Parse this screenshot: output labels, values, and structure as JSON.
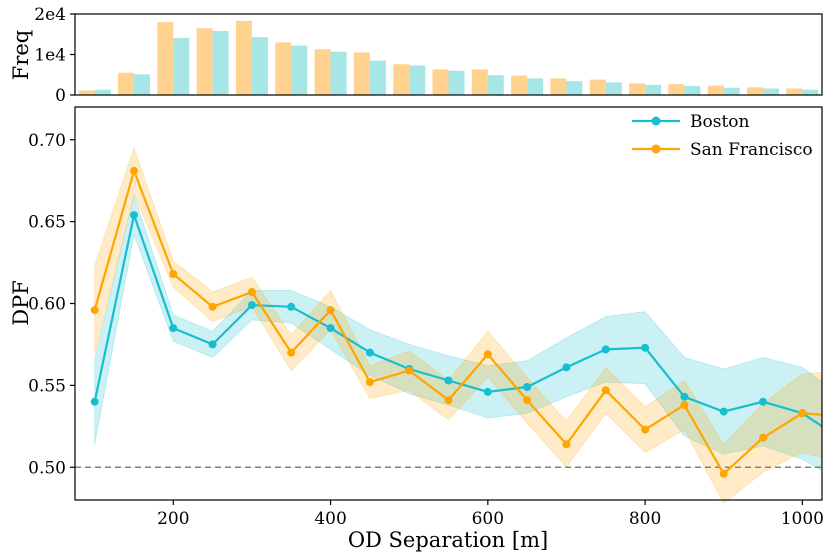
{
  "chart_data": [
    {
      "type": "bar",
      "ylabel": "Freq",
      "ylim": [
        0,
        20000
      ],
      "yticks": [
        {
          "value": 0,
          "label": "0"
        },
        {
          "value": 10000,
          "label": "1e4"
        },
        {
          "value": 20000,
          "label": "2e4"
        }
      ],
      "categories": [
        100,
        150,
        200,
        250,
        300,
        350,
        400,
        450,
        500,
        550,
        600,
        650,
        700,
        750,
        800,
        850,
        900,
        950,
        1000
      ],
      "series": [
        {
          "name": "San Francisco",
          "color": "#FFD28F",
          "values": [
            1100,
            5500,
            18000,
            16500,
            18300,
            13000,
            11300,
            10500,
            7600,
            6300,
            6300,
            4800,
            4100,
            3800,
            2900,
            2700,
            2300,
            1900,
            1600
          ]
        },
        {
          "name": "Boston",
          "color": "#A6E6E6",
          "values": [
            1300,
            5100,
            14100,
            15800,
            14300,
            12200,
            10700,
            8500,
            7300,
            6000,
            4900,
            4100,
            3400,
            3100,
            2500,
            2200,
            1800,
            1600,
            1300
          ]
        }
      ]
    },
    {
      "type": "line",
      "xlabel": "OD Separation [m]",
      "ylabel": "DPF",
      "xlim": [
        75,
        1025
      ],
      "ylim": [
        0.48,
        0.72
      ],
      "xticks": [
        {
          "value": 200,
          "label": "200"
        },
        {
          "value": 400,
          "label": "400"
        },
        {
          "value": 600,
          "label": "600"
        },
        {
          "value": 800,
          "label": "800"
        },
        {
          "value": 1000,
          "label": "1000"
        }
      ],
      "yticks": [
        {
          "value": 0.5,
          "label": "0.50"
        },
        {
          "value": 0.55,
          "label": "0.55"
        },
        {
          "value": 0.6,
          "label": "0.60"
        },
        {
          "value": 0.65,
          "label": "0.65"
        },
        {
          "value": 0.7,
          "label": "0.70"
        }
      ],
      "x": [
        100,
        150,
        200,
        250,
        300,
        350,
        400,
        450,
        500,
        550,
        600,
        650,
        700,
        750,
        800,
        850,
        900,
        950,
        1000,
        1025
      ],
      "series": [
        {
          "name": "Boston",
          "color": "#17BECF",
          "band_color": "#17BECF",
          "values": [
            0.54,
            0.654,
            0.585,
            0.575,
            0.599,
            0.598,
            0.585,
            0.57,
            0.56,
            0.553,
            0.546,
            0.549,
            0.561,
            0.572,
            0.573,
            0.543,
            0.534,
            0.54,
            0.533,
            0.525
          ],
          "lower": [
            0.514,
            0.642,
            0.577,
            0.567,
            0.59,
            0.588,
            0.572,
            0.556,
            0.545,
            0.538,
            0.53,
            0.533,
            0.543,
            0.552,
            0.551,
            0.519,
            0.508,
            0.513,
            0.505,
            0.498
          ],
          "upper": [
            0.566,
            0.666,
            0.593,
            0.583,
            0.608,
            0.608,
            0.598,
            0.584,
            0.575,
            0.568,
            0.562,
            0.565,
            0.579,
            0.592,
            0.595,
            0.567,
            0.56,
            0.567,
            0.561,
            0.552
          ]
        },
        {
          "name": "San Francisco",
          "color": "#FFA500",
          "band_color": "#FFA500",
          "values": [
            0.596,
            0.681,
            0.618,
            0.598,
            0.607,
            0.57,
            0.596,
            0.552,
            0.559,
            0.541,
            0.569,
            0.541,
            0.514,
            0.547,
            0.523,
            0.538,
            0.496,
            0.518,
            0.533,
            0.532
          ],
          "lower": [
            0.569,
            0.667,
            0.61,
            0.589,
            0.598,
            0.559,
            0.584,
            0.542,
            0.547,
            0.529,
            0.555,
            0.527,
            0.5,
            0.533,
            0.509,
            0.523,
            0.478,
            0.497,
            0.509,
            0.506
          ],
          "upper": [
            0.623,
            0.695,
            0.626,
            0.607,
            0.616,
            0.581,
            0.608,
            0.562,
            0.571,
            0.553,
            0.583,
            0.555,
            0.528,
            0.561,
            0.537,
            0.553,
            0.514,
            0.539,
            0.557,
            0.558
          ]
        }
      ],
      "reference_line": {
        "value": 0.5,
        "style": "dashed",
        "color": "#808080"
      },
      "legend": {
        "position": "top-right",
        "entries": [
          "Boston",
          "San Francisco"
        ]
      }
    }
  ]
}
